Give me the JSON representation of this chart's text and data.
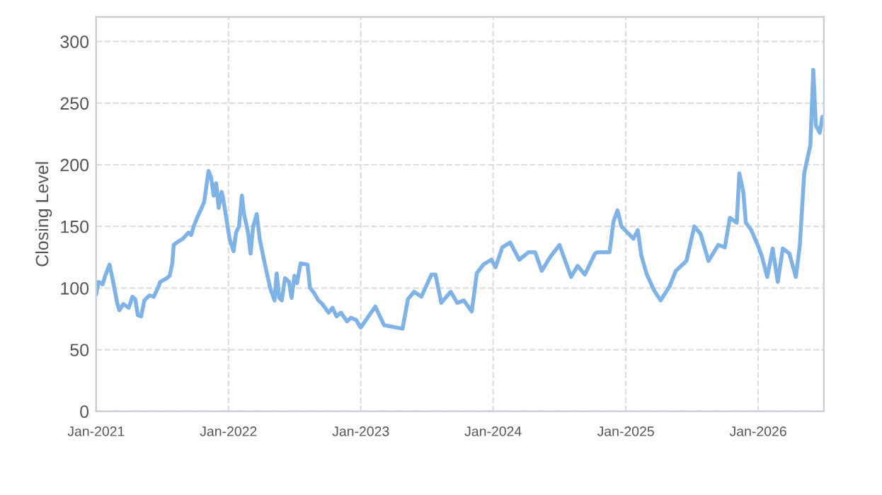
{
  "chart_data": {
    "type": "line",
    "ylabel": "Closing Level",
    "x": [
      "2021-01-01",
      "2021-01-08",
      "2021-01-19",
      "2021-01-26",
      "2021-02-07",
      "2021-02-17",
      "2021-02-28",
      "2021-03-06",
      "2021-03-17",
      "2021-04-01",
      "2021-04-11",
      "2021-04-19",
      "2021-04-26",
      "2021-05-05",
      "2021-05-14",
      "2021-05-28",
      "2021-06-09",
      "2021-06-20",
      "2021-06-27",
      "2021-07-15",
      "2021-07-23",
      "2021-07-30",
      "2021-08-03",
      "2021-08-17",
      "2021-08-28",
      "2021-09-13",
      "2021-09-20",
      "2021-09-27",
      "2021-10-08",
      "2021-10-19",
      "2021-10-26",
      "2021-11-07",
      "2021-11-14",
      "2021-11-21",
      "2021-11-28",
      "2021-12-05",
      "2021-12-13",
      "2021-12-16",
      "2021-12-27",
      "2022-01-04",
      "2022-01-15",
      "2022-01-22",
      "2022-01-30",
      "2022-02-07",
      "2022-02-13",
      "2022-02-24",
      "2022-03-03",
      "2022-03-10",
      "2022-03-20",
      "2022-03-28",
      "2022-04-04",
      "2022-04-11",
      "2022-04-26",
      "2022-05-08",
      "2022-05-14",
      "2022-05-21",
      "2022-05-28",
      "2022-06-06",
      "2022-06-17",
      "2022-06-24",
      "2022-07-02",
      "2022-07-09",
      "2022-07-19",
      "2022-08-07",
      "2022-08-14",
      "2022-08-25",
      "2022-09-06",
      "2022-09-17",
      "2022-10-04",
      "2022-10-15",
      "2022-10-26",
      "2022-11-07",
      "2022-11-24",
      "2022-12-05",
      "2022-12-20",
      "2022-12-27",
      "2023-01-01",
      "2023-02-10",
      "2023-03-06",
      "2023-04-26",
      "2023-05-11",
      "2023-05-28",
      "2023-06-17",
      "2023-07-15",
      "2023-07-26",
      "2023-08-11",
      "2023-09-06",
      "2023-09-24",
      "2023-10-12",
      "2023-11-03",
      "2023-11-17",
      "2023-12-05",
      "2023-12-27",
      "2024-01-08",
      "2024-01-26",
      "2024-02-17",
      "2024-03-13",
      "2024-04-07",
      "2024-04-26",
      "2024-05-14",
      "2024-06-06",
      "2024-07-02",
      "2024-08-03",
      "2024-08-21",
      "2024-09-10",
      "2024-10-08",
      "2024-10-15",
      "2024-11-17",
      "2024-11-28",
      "2024-12-09",
      "2024-12-20",
      "2025-01-22",
      "2025-02-03",
      "2025-02-13",
      "2025-02-28",
      "2025-03-20",
      "2025-04-07",
      "2025-05-01",
      "2025-05-19",
      "2025-06-17",
      "2025-07-09",
      "2025-07-26",
      "2025-08-17",
      "2025-09-13",
      "2025-10-01",
      "2025-10-15",
      "2025-11-03",
      "2025-11-10",
      "2025-11-21",
      "2025-11-28",
      "2025-12-13",
      "2026-01-01",
      "2026-01-11",
      "2026-01-26",
      "2026-02-10",
      "2026-02-24",
      "2026-03-10",
      "2026-03-28",
      "2026-04-15",
      "2026-04-26",
      "2026-05-08",
      "2026-05-25",
      "2026-06-02",
      "2026-06-09",
      "2026-06-20",
      "2026-06-27"
    ],
    "series": [
      {
        "color": "#7fb3e6",
        "values": [
          95,
          105,
          103,
          110,
          119,
          105,
          88,
          82,
          87,
          84,
          93,
          91,
          78,
          77,
          90,
          94,
          93,
          100,
          105,
          108,
          110,
          120,
          135,
          138,
          140,
          145,
          143,
          150,
          158,
          165,
          170,
          195,
          190,
          175,
          185,
          165,
          178,
          175,
          155,
          140,
          130,
          145,
          150,
          175,
          160,
          145,
          128,
          150,
          160,
          140,
          130,
          120,
          100,
          90,
          112,
          92,
          90,
          108,
          105,
          92,
          110,
          104,
          120,
          119,
          100,
          96,
          90,
          87,
          80,
          84,
          77,
          80,
          73,
          76,
          74,
          70,
          68,
          85,
          70,
          67,
          91,
          97,
          93,
          111,
          111,
          88,
          97,
          88,
          90,
          81,
          112,
          119,
          123,
          117,
          133,
          137,
          123,
          129,
          129,
          114,
          125,
          135,
          109,
          118,
          111,
          128,
          129,
          129,
          154,
          163,
          150,
          140,
          147,
          126,
          111,
          98,
          90,
          101,
          114,
          122,
          150,
          144,
          122,
          135,
          133,
          157,
          153,
          193,
          178,
          153,
          147,
          134,
          126,
          109,
          132,
          105,
          132,
          128,
          109,
          135,
          193,
          216,
          277,
          232,
          226,
          239
        ]
      }
    ],
    "xlim": [
      "2021-01-01",
      "2026-07-01"
    ],
    "xticks": [
      {
        "value": "2021-01-01",
        "label": "Jan-2021"
      },
      {
        "value": "2022-01-01",
        "label": "Jan-2022"
      },
      {
        "value": "2023-01-01",
        "label": "Jan-2023"
      },
      {
        "value": "2024-01-01",
        "label": "Jan-2024"
      },
      {
        "value": "2025-01-01",
        "label": "Jan-2025"
      },
      {
        "value": "2026-01-01",
        "label": "Jan-2026"
      }
    ],
    "ylim": [
      0,
      320
    ],
    "yticks": [
      0,
      50,
      100,
      150,
      200,
      250,
      300
    ],
    "grid": true,
    "legend": false
  }
}
